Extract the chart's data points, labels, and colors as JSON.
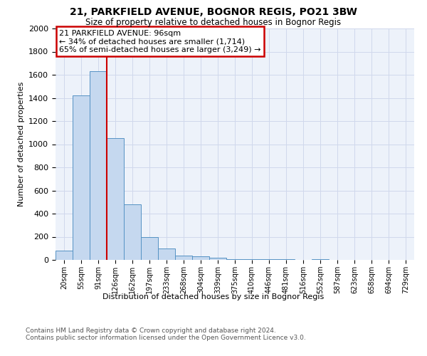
{
  "title": "21, PARKFIELD AVENUE, BOGNOR REGIS, PO21 3BW",
  "subtitle": "Size of property relative to detached houses in Bognor Regis",
  "xlabel": "Distribution of detached houses by size in Bognor Regis",
  "ylabel": "Number of detached properties",
  "bin_labels": [
    "20sqm",
    "55sqm",
    "91sqm",
    "126sqm",
    "162sqm",
    "197sqm",
    "233sqm",
    "268sqm",
    "304sqm",
    "339sqm",
    "375sqm",
    "410sqm",
    "446sqm",
    "481sqm",
    "516sqm",
    "552sqm",
    "587sqm",
    "623sqm",
    "658sqm",
    "694sqm",
    "729sqm"
  ],
  "bar_values": [
    80,
    1420,
    1630,
    1050,
    480,
    200,
    100,
    40,
    30,
    20,
    5,
    5,
    5,
    5,
    0,
    5,
    0,
    0,
    0,
    0,
    0
  ],
  "bar_color": "#c5d8ef",
  "bar_edge_color": "#5592c4",
  "red_line_color": "#cc0000",
  "annotation_text": "21 PARKFIELD AVENUE: 96sqm\n← 34% of detached houses are smaller (1,714)\n65% of semi-detached houses are larger (3,249) →",
  "annotation_box_edgecolor": "#cc0000",
  "ylim_max": 2000,
  "yticks": [
    0,
    200,
    400,
    600,
    800,
    1000,
    1200,
    1400,
    1600,
    1800,
    2000
  ],
  "grid_color": "#d0d8ec",
  "axes_bg_color": "#edf2fa",
  "footer": "Contains HM Land Registry data © Crown copyright and database right 2024.\nContains public sector information licensed under the Open Government Licence v3.0."
}
